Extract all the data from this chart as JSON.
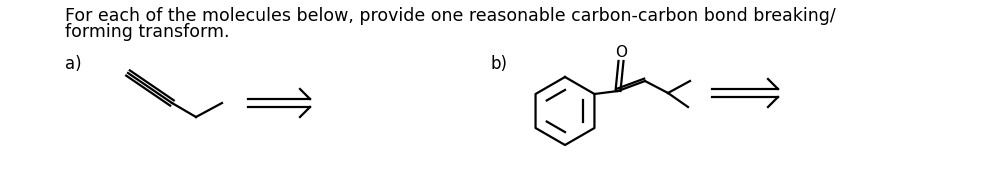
{
  "text_main": "For each of the molecules below, provide one reasonable carbon-carbon bond breaking/",
  "text_main2": "forming transform.",
  "label_a": "a)",
  "label_b": "b)",
  "bg_color": "#ffffff",
  "line_color": "#000000",
  "text_color": "#000000",
  "font_size_main": 12.5,
  "font_size_label": 12,
  "font_size_O": 11
}
